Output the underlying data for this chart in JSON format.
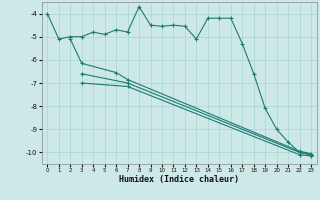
{
  "xlabel": "Humidex (Indice chaleur)",
  "xlim": [
    -0.5,
    23.5
  ],
  "ylim": [
    -10.5,
    -3.5
  ],
  "yticks": [
    -10,
    -9,
    -8,
    -7,
    -6,
    -5,
    -4
  ],
  "xticks": [
    0,
    1,
    2,
    3,
    4,
    5,
    6,
    7,
    8,
    9,
    10,
    11,
    12,
    13,
    14,
    15,
    16,
    17,
    18,
    19,
    20,
    21,
    22,
    23
  ],
  "bg_color": "#cce9e7",
  "grid_color": "#aad4d1",
  "line_color": "#1e7a72",
  "line1_x": [
    0,
    1,
    2,
    3,
    4,
    5,
    6,
    7,
    8,
    9,
    10,
    11,
    12,
    13,
    14,
    15,
    16,
    17,
    18,
    19,
    20,
    21,
    22,
    23
  ],
  "line1_y": [
    -4.0,
    -5.1,
    -5.0,
    -5.0,
    -4.8,
    -4.9,
    -4.7,
    -4.8,
    -3.7,
    -4.5,
    -4.55,
    -4.5,
    -4.55,
    -5.1,
    -4.2,
    -4.2,
    -4.2,
    -5.3,
    -6.6,
    -8.1,
    -9.0,
    -9.55,
    -10.0,
    -10.1
  ],
  "line2_x": [
    2,
    3,
    6,
    7,
    22,
    23
  ],
  "line2_y": [
    -5.1,
    -6.15,
    -6.55,
    -6.85,
    -9.95,
    -10.05
  ],
  "line3_x": [
    3,
    7,
    22,
    23
  ],
  "line3_y": [
    -6.6,
    -7.0,
    -10.0,
    -10.1
  ],
  "line4_x": [
    3,
    7,
    22,
    23
  ],
  "line4_y": [
    -7.0,
    -7.15,
    -10.1,
    -10.15
  ]
}
